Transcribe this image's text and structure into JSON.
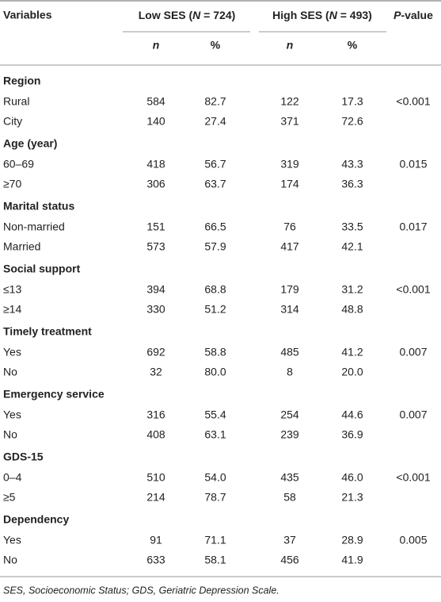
{
  "header": {
    "variables": "Variables",
    "groups": [
      {
        "prefix": "Low SES (",
        "symbol": "N",
        "suffix": " = 724)"
      },
      {
        "prefix": "High SES (",
        "symbol": "N",
        "suffix": " = 493)"
      }
    ],
    "p_value": {
      "symbol": "P",
      "suffix": "-value"
    },
    "subheaders": [
      "n",
      "%",
      "n",
      "%"
    ]
  },
  "sections": [
    {
      "label": "Region",
      "p_value": "<0.001",
      "rows": [
        {
          "label": "Rural",
          "values": [
            "584",
            "82.7",
            "122",
            "17.3"
          ]
        },
        {
          "label": "City",
          "values": [
            "140",
            "27.4",
            "371",
            "72.6"
          ]
        }
      ]
    },
    {
      "label": "Age (year)",
      "p_value": "0.015",
      "rows": [
        {
          "label": "60–69",
          "values": [
            "418",
            "56.7",
            "319",
            "43.3"
          ]
        },
        {
          "label": "≥70",
          "values": [
            "306",
            "63.7",
            "174",
            "36.3"
          ]
        }
      ]
    },
    {
      "label": "Marital status",
      "p_value": "0.017",
      "rows": [
        {
          "label": "Non-married",
          "values": [
            "151",
            "66.5",
            "76",
            "33.5"
          ]
        },
        {
          "label": "Married",
          "values": [
            "573",
            "57.9",
            "417",
            "42.1"
          ]
        }
      ]
    },
    {
      "label": "Social support",
      "p_value": "<0.001",
      "rows": [
        {
          "label": "≤13",
          "values": [
            "394",
            "68.8",
            "179",
            "31.2"
          ]
        },
        {
          "label": "≥14",
          "values": [
            "330",
            "51.2",
            "314",
            "48.8"
          ]
        }
      ]
    },
    {
      "label": "Timely treatment",
      "p_value": "0.007",
      "rows": [
        {
          "label": "Yes",
          "values": [
            "692",
            "58.8",
            "485",
            "41.2"
          ]
        },
        {
          "label": "No",
          "values": [
            "32",
            "80.0",
            "8",
            "20.0"
          ]
        }
      ]
    },
    {
      "label": "Emergency service",
      "p_value": "0.007",
      "rows": [
        {
          "label": "Yes",
          "values": [
            "316",
            "55.4",
            "254",
            "44.6"
          ]
        },
        {
          "label": "No",
          "values": [
            "408",
            "63.1",
            "239",
            "36.9"
          ]
        }
      ]
    },
    {
      "label": "GDS-15",
      "p_value": "<0.001",
      "rows": [
        {
          "label": "0–4",
          "values": [
            "510",
            "54.0",
            "435",
            "46.0"
          ]
        },
        {
          "label": "≥5",
          "values": [
            "214",
            "78.7",
            "58",
            "21.3"
          ]
        }
      ]
    },
    {
      "label": "Dependency",
      "p_value": "0.005",
      "rows": [
        {
          "label": "Yes",
          "values": [
            "91",
            "71.1",
            "37",
            "28.9"
          ]
        },
        {
          "label": "No",
          "values": [
            "633",
            "58.1",
            "456",
            "41.9"
          ]
        }
      ]
    }
  ],
  "footnote": "SES, Socioeconomic Status; GDS, Geriatric Depression Scale."
}
